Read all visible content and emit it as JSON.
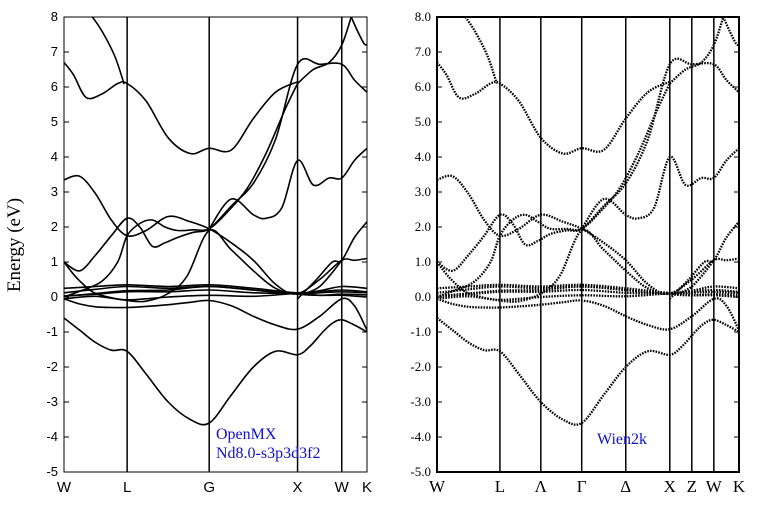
{
  "chart_data": [
    {
      "type": "line",
      "ylabel": "Energy (eV)",
      "ylim": [
        -5,
        8
      ],
      "yticks": [
        "-5",
        "-4",
        "-3",
        "-2",
        "-1",
        "0",
        "1",
        "2",
        "3",
        "4",
        "5",
        "6",
        "7",
        "8"
      ],
      "x_ticks": [
        {
          "label": "W",
          "x": 0
        },
        {
          "label": "L",
          "x": 1
        },
        {
          "label": "G",
          "x": 2.3
        },
        {
          "label": "X",
          "x": 3.7
        },
        {
          "label": "W",
          "x": 4.4
        },
        {
          "label": "K",
          "x": 4.8
        }
      ],
      "annotation": [
        "OpenMX",
        "Nd8.0-s3p3d3f2"
      ],
      "grid": false,
      "series": [
        {
          "x": [
            0,
            0.25,
            0.5,
            0.75,
            1,
            1.3,
            1.65,
            2,
            2.3,
            2.65,
            3,
            3.35,
            3.7,
            3.9,
            4.1,
            4.25,
            4.4,
            4.6,
            4.8
          ],
          "values": [
            -0.6,
            -0.95,
            -1.3,
            -1.52,
            -1.55,
            -2.2,
            -3.0,
            -3.5,
            -3.6,
            -2.8,
            -2.0,
            -1.55,
            -1.65,
            -1.4,
            -1.0,
            -0.75,
            -0.65,
            -0.8,
            -1.0
          ]
        },
        {
          "x": [
            0,
            0.25,
            0.5,
            0.75,
            1,
            1.3,
            1.65,
            2,
            2.3,
            2.65,
            3,
            3.35,
            3.7,
            4.05,
            4.4,
            4.6,
            4.8
          ],
          "values": [
            -0.05,
            -0.2,
            -0.28,
            -0.3,
            -0.3,
            -0.27,
            -0.22,
            -0.15,
            -0.1,
            -0.25,
            -0.55,
            -0.8,
            -0.92,
            -0.55,
            -0.05,
            -0.25,
            -0.95
          ]
        },
        {
          "x": [
            0,
            0.5,
            1,
            1.65,
            2.3,
            3,
            3.7,
            4.05,
            4.4,
            4.8
          ],
          "values": [
            -0.05,
            0.02,
            -0.08,
            0.0,
            0.05,
            0.02,
            0.1,
            0.05,
            0.05,
            0.0
          ]
        },
        {
          "x": [
            0,
            0.5,
            1,
            1.65,
            2.3,
            3,
            3.7,
            4.05,
            4.4,
            4.8
          ],
          "values": [
            0.03,
            0.08,
            0.15,
            0.15,
            0.2,
            0.12,
            0.1,
            0.12,
            0.15,
            0.12
          ]
        },
        {
          "x": [
            0,
            0.5,
            1,
            1.65,
            2.3,
            3,
            3.7,
            4.05,
            4.4,
            4.8
          ],
          "values": [
            0.12,
            0.22,
            0.3,
            0.25,
            0.3,
            0.2,
            0.1,
            0.15,
            0.2,
            0.15
          ]
        },
        {
          "x": [
            0,
            0.5,
            1,
            1.65,
            2.3,
            3,
            3.7,
            4.05,
            4.4,
            4.8
          ],
          "values": [
            0.25,
            0.3,
            0.35,
            0.3,
            0.35,
            0.25,
            0.12,
            0.18,
            0.3,
            0.25
          ]
        },
        {
          "x": [
            0,
            0.5,
            1,
            1.65,
            2.3,
            3,
            3.7,
            4.05,
            4.4,
            4.8
          ],
          "values": [
            0.02,
            0.1,
            0.18,
            0.2,
            0.3,
            0.2,
            0.08,
            0.05,
            0.08,
            0.06
          ]
        },
        {
          "x": [
            0,
            0.2,
            0.45,
            0.7,
            1,
            1.3,
            1.65,
            1.95,
            2.3,
            2.65,
            3,
            3.35,
            3.7,
            4.05,
            4.4,
            4.6,
            4.8
          ],
          "values": [
            1.0,
            0.55,
            0.15,
            0.0,
            -0.1,
            -0.12,
            0.1,
            0.6,
            1.9,
            1.35,
            0.75,
            0.25,
            0.1,
            0.5,
            1.05,
            1.05,
            1.1
          ]
        },
        {
          "x": [
            0,
            0.25,
            0.5,
            0.75,
            1,
            1.2,
            1.4,
            1.6,
            1.8,
            2.05,
            2.3,
            2.65,
            3,
            3.35,
            3.7,
            4.05,
            4.4,
            4.6,
            4.8
          ],
          "values": [
            1.0,
            0.75,
            1.2,
            1.75,
            2.25,
            2.0,
            1.45,
            1.55,
            1.7,
            1.85,
            1.95,
            2.6,
            3.25,
            4.5,
            6.65,
            6.65,
            6.65,
            6.2,
            5.85
          ]
        },
        {
          "x": [
            0,
            0.25,
            0.5,
            0.75,
            1,
            1.3,
            1.65,
            2,
            2.3,
            2.65,
            3,
            3.3,
            3.55,
            3.7,
            3.85,
            4.05,
            4.25,
            4.4
          ],
          "values": [
            3.35,
            3.45,
            2.95,
            2.2,
            1.75,
            1.9,
            2.3,
            2.15,
            1.95,
            1.55,
            1.05,
            0.45,
            0.12,
            0.1,
            0.12,
            0.3,
            0.7,
            1.05
          ]
        },
        {
          "x": [
            0,
            0.3,
            0.6,
            0.85,
            1,
            1.2,
            1.4,
            1.6,
            1.8,
            2.05,
            2.3,
            2.6,
            2.9,
            3.2,
            3.5,
            3.7
          ],
          "values": [
            0.0,
            0.2,
            0.45,
            1.0,
            1.75,
            2.1,
            2.2,
            2.0,
            1.9,
            1.92,
            1.95,
            2.45,
            3.1,
            4.1,
            5.35,
            6.1
          ]
        },
        {
          "x": [
            0,
            0.15,
            0.35,
            0.6,
            0.85,
            1,
            1.3,
            1.65,
            2,
            2.3,
            2.65,
            3,
            3.35,
            3.7
          ],
          "values": [
            6.7,
            6.35,
            5.7,
            5.8,
            6.1,
            6.1,
            5.6,
            4.55,
            4.1,
            4.25,
            4.2,
            5.1,
            5.85,
            6.15
          ]
        },
        {
          "x": [
            2.3,
            2.65,
            3,
            3.2,
            3.45,
            3.7,
            3.95,
            4.2,
            4.4,
            4.6,
            4.8
          ],
          "values": [
            1.95,
            2.8,
            2.35,
            2.25,
            2.55,
            3.9,
            3.2,
            3.4,
            3.4,
            3.9,
            4.25
          ]
        },
        {
          "x": [
            3.7,
            4.0,
            4.25,
            4.4,
            4.6,
            4.8
          ],
          "values": [
            -0.05,
            0.5,
            1.0,
            1.05,
            1.7,
            2.15
          ]
        },
        {
          "x": [
            0.45,
            0.6,
            0.8,
            0.95
          ],
          "values": [
            8.0,
            7.6,
            6.9,
            6.1
          ]
        },
        {
          "x": [
            3.7,
            3.95,
            4.2,
            4.4,
            4.55
          ],
          "values": [
            6.1,
            6.5,
            6.7,
            7.2,
            8.0
          ]
        },
        {
          "x": [
            4.55,
            4.65,
            4.75,
            4.8
          ],
          "values": [
            8.0,
            7.6,
            7.25,
            7.2
          ]
        }
      ]
    },
    {
      "type": "line",
      "ylim": [
        -5,
        8
      ],
      "yticks": [
        "-5.0",
        "-4.0",
        "-3.0",
        "-2.0",
        "-1.0",
        "0.0",
        "1.0",
        "2.0",
        "3.0",
        "4.0",
        "5.0",
        "6.0",
        "7.0",
        "8.0"
      ],
      "x_ticks": [
        {
          "label": "W",
          "x": 0
        },
        {
          "label": "L",
          "x": 1
        },
        {
          "label": "Λ",
          "x": 1.65
        },
        {
          "label": "Γ",
          "x": 2.3
        },
        {
          "label": "Δ",
          "x": 3.0
        },
        {
          "label": "X",
          "x": 3.7
        },
        {
          "label": "Z",
          "x": 4.05
        },
        {
          "label": "W",
          "x": 4.4
        },
        {
          "label": "K",
          "x": 4.8
        }
      ],
      "annotation": [
        "Wien2k"
      ],
      "grid": false,
      "series": [
        {
          "x": [
            0,
            0.25,
            0.5,
            0.75,
            1,
            1.3,
            1.65,
            2,
            2.3,
            2.65,
            3,
            3.35,
            3.7,
            3.9,
            4.1,
            4.25,
            4.4,
            4.6,
            4.8
          ],
          "values": [
            -0.6,
            -0.95,
            -1.3,
            -1.52,
            -1.55,
            -2.2,
            -3.0,
            -3.5,
            -3.6,
            -2.8,
            -2.0,
            -1.55,
            -1.65,
            -1.4,
            -1.0,
            -0.75,
            -0.65,
            -0.8,
            -1.0
          ]
        },
        {
          "x": [
            0,
            0.25,
            0.5,
            0.75,
            1,
            1.3,
            1.65,
            2,
            2.3,
            2.65,
            3,
            3.35,
            3.7,
            4.05,
            4.4,
            4.6,
            4.8
          ],
          "values": [
            -0.05,
            -0.2,
            -0.28,
            -0.3,
            -0.3,
            -0.27,
            -0.22,
            -0.15,
            -0.1,
            -0.25,
            -0.55,
            -0.8,
            -0.92,
            -0.55,
            -0.05,
            -0.25,
            -0.95
          ]
        },
        {
          "x": [
            0,
            0.5,
            1,
            1.65,
            2.3,
            3,
            3.7,
            4.05,
            4.4,
            4.8
          ],
          "values": [
            -0.05,
            0.02,
            -0.08,
            0.0,
            0.05,
            0.02,
            0.1,
            0.05,
            0.05,
            0.0
          ]
        },
        {
          "x": [
            0,
            0.5,
            1,
            1.65,
            2.3,
            3,
            3.7,
            4.05,
            4.4,
            4.8
          ],
          "values": [
            0.03,
            0.08,
            0.15,
            0.15,
            0.2,
            0.12,
            0.1,
            0.12,
            0.15,
            0.12
          ]
        },
        {
          "x": [
            0,
            0.5,
            1,
            1.65,
            2.3,
            3,
            3.7,
            4.05,
            4.4,
            4.8
          ],
          "values": [
            0.12,
            0.22,
            0.3,
            0.25,
            0.3,
            0.2,
            0.1,
            0.15,
            0.2,
            0.15
          ]
        },
        {
          "x": [
            0,
            0.5,
            1,
            1.65,
            2.3,
            3,
            3.7,
            4.05,
            4.4,
            4.8
          ],
          "values": [
            0.25,
            0.3,
            0.35,
            0.3,
            0.35,
            0.25,
            0.12,
            0.18,
            0.3,
            0.25
          ]
        },
        {
          "x": [
            0,
            0.5,
            1,
            1.65,
            2.3,
            3,
            3.7,
            4.05,
            4.4,
            4.8
          ],
          "values": [
            0.02,
            0.1,
            0.18,
            0.2,
            0.3,
            0.2,
            0.08,
            0.05,
            0.08,
            0.06
          ]
        },
        {
          "x": [
            0,
            0.2,
            0.45,
            0.7,
            1,
            1.3,
            1.65,
            1.95,
            2.3,
            2.65,
            3,
            3.35,
            3.7,
            4.05,
            4.4,
            4.6,
            4.8
          ],
          "values": [
            1.0,
            0.55,
            0.15,
            0.0,
            -0.1,
            -0.12,
            0.1,
            0.6,
            1.9,
            1.35,
            0.75,
            0.25,
            0.1,
            0.5,
            1.05,
            1.05,
            1.1
          ]
        },
        {
          "x": [
            0,
            0.25,
            0.5,
            0.75,
            1,
            1.2,
            1.4,
            1.6,
            1.8,
            2.05,
            2.3,
            2.65,
            3,
            3.35,
            3.7,
            4.05,
            4.4,
            4.6,
            4.8
          ],
          "values": [
            1.0,
            0.75,
            1.2,
            1.75,
            2.35,
            2.1,
            1.5,
            1.6,
            1.8,
            1.9,
            1.95,
            2.6,
            3.25,
            4.5,
            6.65,
            6.65,
            6.65,
            6.2,
            5.85
          ]
        },
        {
          "x": [
            0,
            0.25,
            0.5,
            0.75,
            1,
            1.3,
            1.65,
            2,
            2.3,
            2.65,
            3,
            3.3,
            3.55,
            3.7,
            3.85,
            4.05,
            4.25,
            4.4
          ],
          "values": [
            3.35,
            3.45,
            2.95,
            2.2,
            1.75,
            1.95,
            2.35,
            2.15,
            1.95,
            1.55,
            1.05,
            0.45,
            0.12,
            0.1,
            0.12,
            0.3,
            0.7,
            1.05
          ]
        },
        {
          "x": [
            0,
            0.3,
            0.6,
            0.85,
            1,
            1.2,
            1.4,
            1.6,
            1.8,
            2.05,
            2.3,
            2.6,
            2.9,
            3.2,
            3.5,
            3.7
          ],
          "values": [
            0.0,
            0.2,
            0.45,
            1.0,
            1.75,
            2.2,
            2.35,
            2.15,
            1.95,
            1.95,
            1.95,
            2.45,
            3.1,
            4.1,
            5.35,
            6.1
          ]
        },
        {
          "x": [
            0,
            0.15,
            0.35,
            0.6,
            0.85,
            1,
            1.3,
            1.65,
            2,
            2.3,
            2.65,
            3,
            3.35,
            3.7
          ],
          "values": [
            6.7,
            6.35,
            5.7,
            5.8,
            6.1,
            6.1,
            5.6,
            4.55,
            4.1,
            4.25,
            4.2,
            5.1,
            5.85,
            6.15
          ]
        },
        {
          "x": [
            2.3,
            2.65,
            3,
            3.2,
            3.45,
            3.7,
            3.95,
            4.2,
            4.4,
            4.6,
            4.8
          ],
          "values": [
            1.95,
            2.8,
            2.35,
            2.25,
            2.55,
            4.0,
            3.2,
            3.4,
            3.4,
            3.9,
            4.25
          ]
        },
        {
          "x": [
            3.7,
            4.0,
            4.25,
            4.4,
            4.6,
            4.8
          ],
          "values": [
            -0.05,
            0.5,
            1.0,
            1.05,
            1.7,
            2.15
          ]
        },
        {
          "x": [
            0.45,
            0.6,
            0.8,
            0.95
          ],
          "values": [
            8.0,
            7.6,
            6.9,
            6.1
          ]
        },
        {
          "x": [
            3.7,
            3.95,
            4.2,
            4.4,
            4.55
          ],
          "values": [
            6.1,
            6.5,
            6.7,
            7.2,
            8.0
          ]
        },
        {
          "x": [
            4.55,
            4.65,
            4.75,
            4.8
          ],
          "values": [
            8.0,
            7.6,
            7.25,
            7.2
          ]
        }
      ]
    }
  ]
}
